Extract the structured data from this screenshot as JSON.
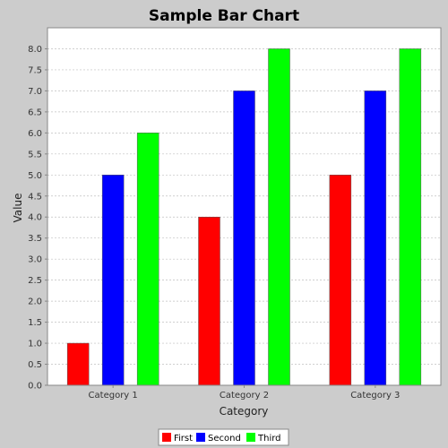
{
  "chart_data": {
    "type": "bar",
    "title": "Sample Bar Chart",
    "xlabel": "Category",
    "ylabel": "Value",
    "categories": [
      "Category 1",
      "Category 2",
      "Category 3"
    ],
    "series": [
      {
        "name": "First",
        "values": [
          1.0,
          4.0,
          5.0
        ],
        "color": "#ff0000"
      },
      {
        "name": "Second",
        "values": [
          5.0,
          7.0,
          7.0
        ],
        "color": "#0000ff"
      },
      {
        "name": "Third",
        "values": [
          6.0,
          8.0,
          8.0
        ],
        "color": "#00ff00"
      }
    ],
    "ylim": [
      0,
      8.5
    ],
    "yticks": [
      "0.0",
      "0.5",
      "1.0",
      "1.5",
      "2.0",
      "2.5",
      "3.0",
      "3.5",
      "4.0",
      "4.5",
      "5.0",
      "5.5",
      "6.0",
      "6.5",
      "7.0",
      "7.5",
      "8.0"
    ],
    "grid": true,
    "legend_position": "bottom"
  },
  "colors": {
    "background": "#cccccc",
    "plot_background": "#ffffff",
    "gridline": "#c0c0c0"
  }
}
